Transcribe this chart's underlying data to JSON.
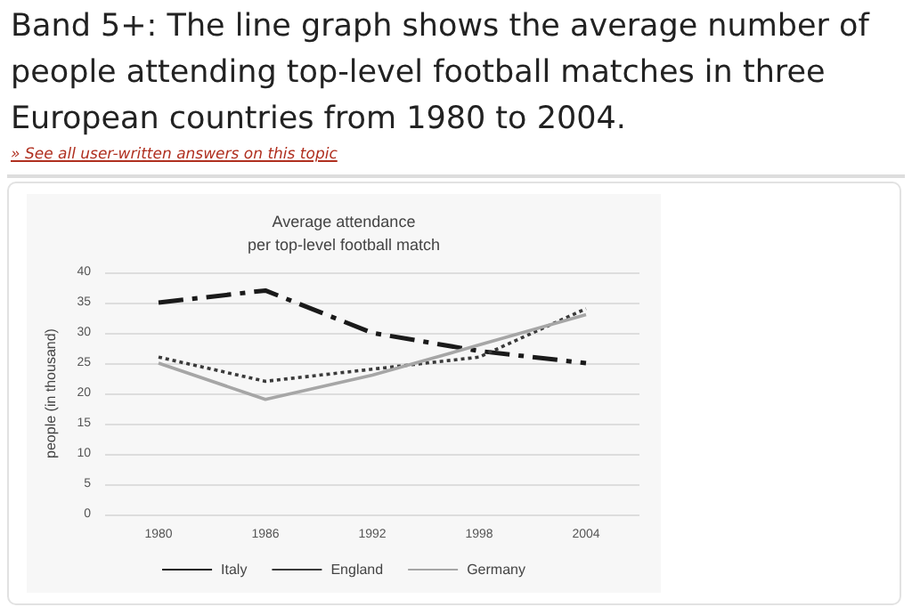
{
  "chart_data": {
    "type": "line",
    "title": "Band 5+: The line graph shows the average number of people attending top-level football matches in three European countries from 1980 to 2004.",
    "subtitle": "Average attendance\nper top-level football match",
    "annotations": [
      "» See all user-written answers on this topic"
    ],
    "ylabel": "people (in thousand)",
    "categories": [
      "1980",
      "1986",
      "1992",
      "1998",
      "2004"
    ],
    "ylim": [
      0,
      40
    ],
    "yticks": [
      0,
      5,
      10,
      15,
      20,
      25,
      30,
      35,
      40
    ],
    "grid": "y",
    "legend": "bottom",
    "marker": "none",
    "series": [
      {
        "name": "Italy",
        "color": "#1a1a1a",
        "line_style": "dashed",
        "values": [
          35,
          37,
          30,
          27,
          25
        ]
      },
      {
        "name": "England",
        "color": "#3a3a3a",
        "line_style": "dotted",
        "values": [
          26,
          22,
          24,
          26,
          34
        ]
      },
      {
        "name": "Germany",
        "color": "#a6a6a6",
        "line_style": "solid",
        "values": [
          25,
          19,
          23,
          28,
          33
        ]
      }
    ]
  }
}
